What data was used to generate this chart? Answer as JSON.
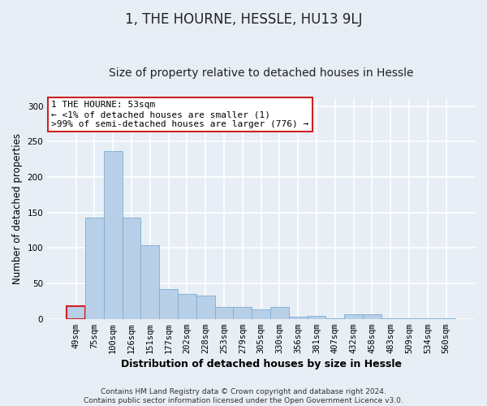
{
  "title": "1, THE HOURNE, HESSLE, HU13 9LJ",
  "subtitle": "Size of property relative to detached houses in Hessle",
  "xlabel": "Distribution of detached houses by size in Hessle",
  "ylabel": "Number of detached properties",
  "categories": [
    "49sqm",
    "75sqm",
    "100sqm",
    "126sqm",
    "151sqm",
    "177sqm",
    "202sqm",
    "228sqm",
    "253sqm",
    "279sqm",
    "305sqm",
    "330sqm",
    "356sqm",
    "381sqm",
    "407sqm",
    "432sqm",
    "458sqm",
    "483sqm",
    "509sqm",
    "534sqm",
    "560sqm"
  ],
  "values": [
    18,
    143,
    237,
    143,
    104,
    42,
    35,
    33,
    17,
    17,
    13,
    17,
    3,
    4,
    1,
    6,
    6,
    1,
    1,
    1,
    1
  ],
  "bar_color": "#b8cfe8",
  "bar_edge_color": "#7aadd4",
  "highlight_bar_index": 0,
  "highlight_bar_edge_color": "#cc2222",
  "annotation_text": "1 THE HOURNE: 53sqm\n← <1% of detached houses are smaller (1)\n>99% of semi-detached houses are larger (776) →",
  "annotation_box_color": "#ffffff",
  "annotation_box_edge_color": "#cc2222",
  "footnote": "Contains HM Land Registry data © Crown copyright and database right 2024.\nContains public sector information licensed under the Open Government Licence v3.0.",
  "ylim": [
    0,
    310
  ],
  "background_color": "#e8eef5",
  "plot_background_color": "#e8eef5",
  "grid_color": "#ffffff",
  "title_fontsize": 12,
  "subtitle_fontsize": 10,
  "tick_fontsize": 7.5,
  "ylabel_fontsize": 8.5,
  "xlabel_fontsize": 9,
  "annotation_fontsize": 8,
  "footnote_fontsize": 6.5
}
